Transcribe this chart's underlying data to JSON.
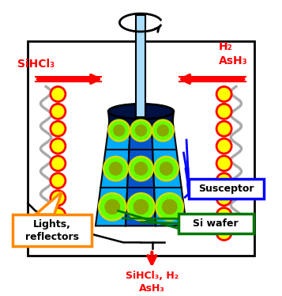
{
  "bg_color": "#ffffff",
  "susceptor_body_color": "#00aaff",
  "susceptor_side_color": "#0055cc",
  "susceptor_dark_top": "#001040",
  "wafer_color": "#66ff00",
  "wafer_border_color": "#ccdd00",
  "wafer_center_color": "#88aa00",
  "shaft_color": "#aaddff",
  "lamp_yellow": "#ffff00",
  "lamp_red_border": "#ff0000",
  "coil_color": "#aaaaaa",
  "arrow_color": "#ff0000",
  "label_red": "#ff0000",
  "label_orange": "#ff8800",
  "box_blue_edge": "#0000ff",
  "box_green_edge": "#007700",
  "box_orange_edge": "#ff8800",
  "line_green": "#007700",
  "line_blue": "#0000ff",
  "text_SiHCl3_left": "SiHCl₃",
  "text_H2_AsH3": "H₂\nAsH₃",
  "text_bottom": "SiHCl₃, H₂\nAsH₃",
  "text_susceptor": "Susceptor",
  "text_si_wafer": "Si wafer",
  "text_lights": "Lights,\nreflectors"
}
